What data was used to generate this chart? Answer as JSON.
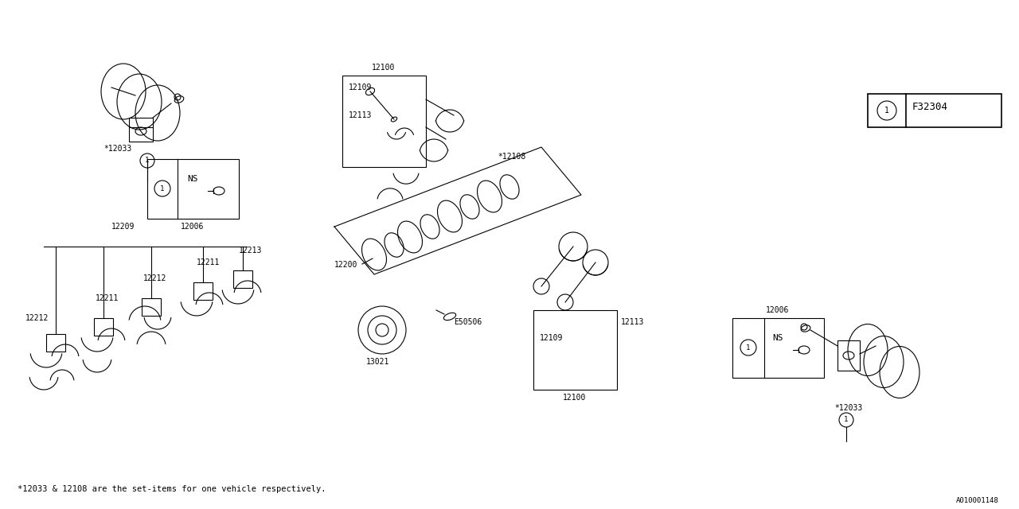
{
  "bg_color": "#ffffff",
  "line_color": "#000000",
  "fig_width": 12.8,
  "fig_height": 6.4,
  "dpi": 100,
  "footer_note": "*12033 & 12108 are the set-items for one vehicle respectively.",
  "diagram_id": "F32304",
  "bottom_label": "A010001148",
  "lw": 0.8,
  "font_size_label": 7.0,
  "font_size_note": 7.5,
  "font_family": "monospace"
}
